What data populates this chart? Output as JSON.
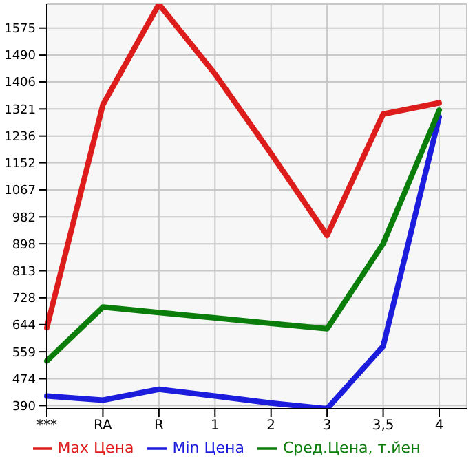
{
  "chart_data": {
    "type": "line",
    "categories": [
      "***",
      "RA",
      "R",
      "1",
      "2",
      "3",
      "3,5",
      "4"
    ],
    "series": [
      {
        "name": "Max Цена",
        "color": "#dd1c1c",
        "values": [
          634,
          1334,
          1650,
          1431,
          1181,
          924,
          1305,
          1340
        ]
      },
      {
        "name": "Min Цена",
        "color": "#1c1cdd",
        "values": [
          420,
          407,
          441,
          420,
          398,
          380,
          576,
          1296
        ]
      },
      {
        "name": "Сред.Цена, т.йен",
        "color": "#0a7d0a",
        "values": [
          530,
          699,
          682,
          665,
          648,
          631,
          898,
          1317
        ]
      }
    ],
    "ylim": [
      380,
      1650
    ],
    "yticks": [
      390,
      474,
      559,
      644,
      728,
      813,
      898,
      982,
      1067,
      1152,
      1236,
      1321,
      1406,
      1490,
      1575
    ],
    "grid": true,
    "legend": "bottom",
    "marker": "none",
    "line_style": "solid"
  }
}
